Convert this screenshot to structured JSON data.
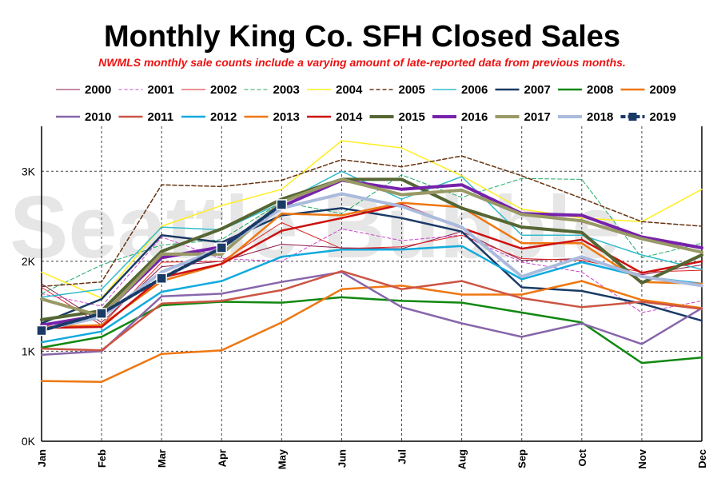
{
  "chart_data": {
    "type": "line",
    "title": "Monthly King Co. SFH Closed Sales",
    "subtitle": "NWMLS monthly sale counts include a varying amount of late-reported  data from previous months.",
    "watermark": "Seattle Bubble",
    "categories": [
      "Jan",
      "Feb",
      "Mar",
      "Apr",
      "May",
      "Jun",
      "Jul",
      "Aug",
      "Sep",
      "Oct",
      "Nov",
      "Dec"
    ],
    "y_ticks": [
      {
        "value": 0,
        "label": "0K"
      },
      {
        "value": 1000,
        "label": "1K"
      },
      {
        "value": 2000,
        "label": "2K"
      },
      {
        "value": 3000,
        "label": "3K"
      }
    ],
    "ylim": [
      0,
      3500
    ],
    "grid": true,
    "legend_position": "top",
    "series": [
      {
        "name": "2000",
        "color": "#8b1a4a",
        "dash": "solid",
        "width": 1,
        "values": [
          1750,
          1320,
          1940,
          2000,
          2190,
          2150,
          2140,
          2330,
          2010,
          2030,
          1850,
          1960
        ]
      },
      {
        "name": "2001",
        "color": "#cc44cc",
        "dash": "4,3",
        "width": 1,
        "values": [
          1640,
          1500,
          2270,
          2030,
          2000,
          2360,
          2230,
          2290,
          1990,
          1880,
          1430,
          1560
        ]
      },
      {
        "name": "2002",
        "color": "#dd2222",
        "dash": "solid",
        "width": 1,
        "values": [
          1710,
          1290,
          1990,
          2000,
          2430,
          2140,
          2160,
          2290,
          2030,
          2010,
          1880,
          1900
        ]
      },
      {
        "name": "2003",
        "color": "#22aa66",
        "dash": "5,3",
        "width": 1,
        "values": [
          1640,
          1960,
          2180,
          2240,
          2660,
          2530,
          2960,
          2710,
          2920,
          2910,
          2040,
          2200
        ]
      },
      {
        "name": "2004",
        "color": "#ffee22",
        "dash": "solid",
        "width": 1.5,
        "values": [
          1880,
          1590,
          2390,
          2620,
          2800,
          3340,
          3260,
          2950,
          2580,
          2480,
          2440,
          2800
        ]
      },
      {
        "name": "2005",
        "color": "#663311",
        "dash": "5,3",
        "width": 1.5,
        "values": [
          1720,
          1770,
          2850,
          2830,
          2900,
          3130,
          3050,
          3170,
          2950,
          2700,
          2440,
          2390
        ]
      },
      {
        "name": "2006",
        "color": "#33bbcc",
        "dash": "solid",
        "width": 1.5,
        "values": [
          1600,
          1690,
          2380,
          2350,
          2650,
          3000,
          2690,
          2940,
          2290,
          2290,
          2070,
          1910
        ]
      },
      {
        "name": "2007",
        "color": "#1a3a66",
        "dash": "solid",
        "width": 2.5,
        "values": [
          1310,
          1580,
          2290,
          2210,
          2510,
          2590,
          2480,
          2330,
          1710,
          1670,
          1530,
          1340
        ]
      },
      {
        "name": "2008",
        "color": "#118811",
        "dash": "solid",
        "width": 2.5,
        "values": [
          1040,
          1160,
          1510,
          1550,
          1540,
          1600,
          1560,
          1540,
          1430,
          1320,
          870,
          930
        ]
      },
      {
        "name": "2009",
        "color": "#ee7711",
        "dash": "solid",
        "width": 2.5,
        "values": [
          670,
          660,
          970,
          1010,
          1320,
          1690,
          1730,
          1630,
          1630,
          1780,
          1570,
          1480
        ]
      },
      {
        "name": "2010",
        "color": "#8866aa",
        "dash": "solid",
        "width": 2.5,
        "values": [
          960,
          1000,
          1610,
          1640,
          1770,
          1880,
          1490,
          1310,
          1160,
          1310,
          1080,
          1480
        ]
      },
      {
        "name": "2011",
        "color": "#cc5544",
        "dash": "solid",
        "width": 2.5,
        "values": [
          1030,
          1010,
          1530,
          1560,
          1680,
          1890,
          1690,
          1780,
          1590,
          1490,
          1550,
          1470
        ]
      },
      {
        "name": "2012",
        "color": "#11aadd",
        "dash": "solid",
        "width": 2.5,
        "values": [
          1100,
          1220,
          1660,
          1780,
          2050,
          2130,
          2130,
          2170,
          1800,
          1990,
          1830,
          1750
        ]
      },
      {
        "name": "2013",
        "color": "#ee7711",
        "dash": "solid",
        "width": 2.5,
        "values": [
          1270,
          1290,
          1780,
          1970,
          2530,
          2510,
          2650,
          2600,
          2200,
          2200,
          1770,
          1750
        ]
      },
      {
        "name": "2014",
        "color": "#cc1111",
        "dash": "solid",
        "width": 2.5,
        "values": [
          1260,
          1270,
          1820,
          1970,
          2340,
          2480,
          2630,
          2370,
          2140,
          2240,
          1870,
          2000
        ]
      },
      {
        "name": "2015",
        "color": "#556633",
        "dash": "solid",
        "width": 4,
        "values": [
          1350,
          1450,
          2110,
          2360,
          2690,
          2910,
          2910,
          2590,
          2380,
          2320,
          1760,
          2070
        ]
      },
      {
        "name": "2016",
        "color": "#7722aa",
        "dash": "solid",
        "width": 4,
        "values": [
          1290,
          1400,
          2040,
          2160,
          2610,
          2900,
          2800,
          2850,
          2530,
          2510,
          2270,
          2150
        ]
      },
      {
        "name": "2017",
        "color": "#999966",
        "dash": "solid",
        "width": 4,
        "values": [
          1580,
          1390,
          2080,
          2080,
          2660,
          2910,
          2740,
          2790,
          2520,
          2450,
          2250,
          2100
        ]
      },
      {
        "name": "2018",
        "color": "#aabbdd",
        "dash": "solid",
        "width": 4,
        "values": [
          1240,
          1380,
          1880,
          2150,
          2590,
          2750,
          2610,
          2380,
          1830,
          2050,
          1830,
          1730
        ]
      },
      {
        "name": "2019",
        "color": "#1a3a66",
        "dash": "6,3",
        "width": 4,
        "marker": "square",
        "values": [
          1230,
          1420,
          1810,
          2150,
          2630,
          null,
          null,
          null,
          null,
          null,
          null,
          null
        ]
      }
    ]
  }
}
